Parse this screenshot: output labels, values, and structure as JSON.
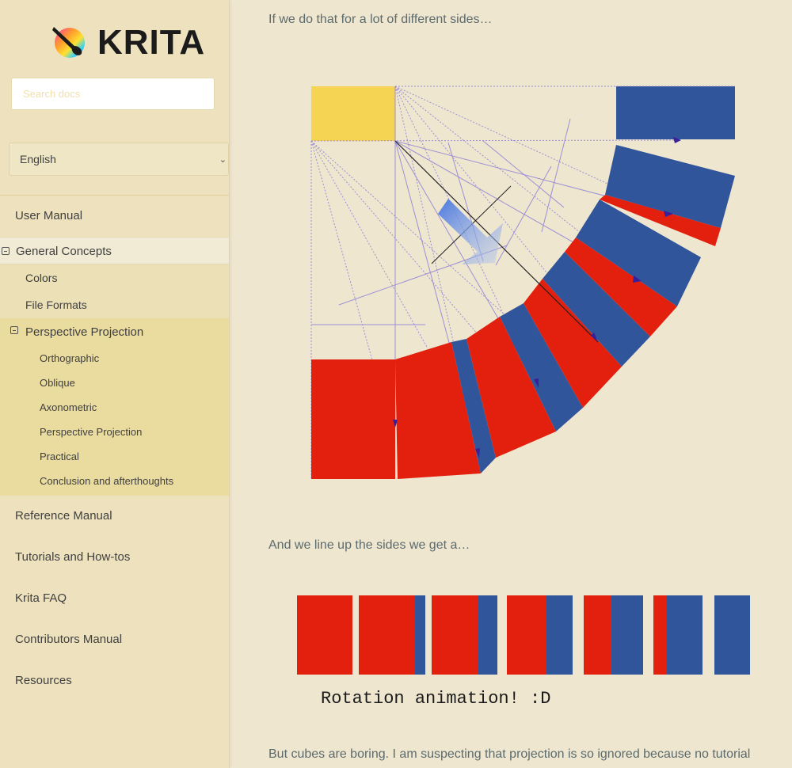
{
  "brand": {
    "name": "KRITA"
  },
  "search": {
    "placeholder": "Search docs"
  },
  "language": {
    "selected": "English"
  },
  "nav": {
    "user_manual": "User Manual",
    "general_concepts": "General Concepts",
    "colors": "Colors",
    "file_formats": "File Formats",
    "perspective_projection": "Perspective Projection",
    "sub_items": [
      "Orthographic",
      "Oblique",
      "Axonometric",
      "Perspective Projection",
      "Practical",
      "Conclusion and afterthoughts"
    ],
    "reference_manual": "Reference Manual",
    "tutorials": "Tutorials and How-tos",
    "faq": "Krita FAQ",
    "contributors": "Contributors Manual",
    "resources": "Resources"
  },
  "content": {
    "para1": "If we do that for a lot of different sides…",
    "para2": "And we line up the sides we get a…",
    "para3": "But cubes are boring. I am suspecting that projection is so ignored because no tutorial",
    "figure2_caption": "Rotation animation! :D"
  },
  "colors": {
    "red": "#e3200e",
    "blue": "#30559a",
    "yellow": "#f4d452",
    "accent": "#5b6b6e"
  }
}
